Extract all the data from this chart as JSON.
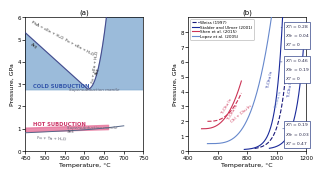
{
  "panel_a": {
    "title": "(a)",
    "xlabel": "Temperature, °C",
    "ylabel": "Pressure, GPa",
    "xlim": [
      450,
      750
    ],
    "ylim": [
      0,
      6
    ],
    "xticks": [
      450,
      500,
      550,
      600,
      650,
      700,
      750
    ],
    "yticks": [
      0,
      1,
      2,
      3,
      4,
      5,
      6
    ],
    "blue_fill_color": "#8ab0d4",
    "pink_fill_color": "#e87aa0"
  },
  "panel_b": {
    "title": "(b)",
    "xlabel": "Temperature, °C",
    "ylabel": "Pressure, GPa",
    "xlim": [
      400,
      1200
    ],
    "ylim": [
      0,
      9
    ],
    "xticks": [
      400,
      600,
      800,
      1000,
      1200
    ],
    "yticks": [
      0,
      1,
      2,
      3,
      4,
      5,
      6,
      7,
      8
    ],
    "weiss_color": "#1a1a7a",
    "stalder_color": "#1a2a9a",
    "shen_color": "#cc3355",
    "lopez_color": "#6688cc"
  }
}
